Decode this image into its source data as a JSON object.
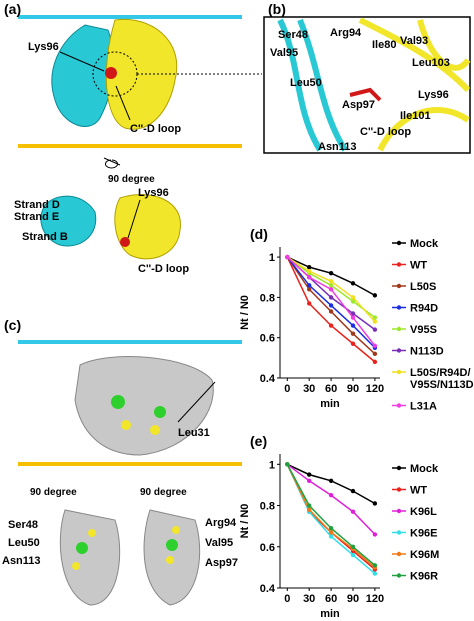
{
  "figure": {
    "a": {
      "label": "(a)",
      "lys96_top": "Lys96",
      "loop_top": "C''-D loop",
      "rotation": "90 degree",
      "lys96_bottom": "Lys96",
      "strand_d": "Strand D",
      "strand_e": "Strand E",
      "strand_b": "Strand B",
      "loop_bottom": "C''-D loop"
    },
    "b": {
      "label": "(b)",
      "ser48": "Ser48",
      "arg94": "Arg94",
      "ile80": "Ile80",
      "val93": "Val93",
      "val95": "Val95",
      "leu103": "Leu103",
      "leu50": "Leu50",
      "asp97": "Asp97",
      "lys96": "Lys96",
      "ile101": "Ile101",
      "loop": "C''-D loop",
      "asn113": "Asn113"
    },
    "c": {
      "label": "(c)",
      "leu31": "Leu31",
      "rotation_left": "90 degree",
      "rotation_right": "90 degree",
      "ser48": "Ser48",
      "leu50": "Leu50",
      "asn113": "Asn113",
      "arg94": "Arg94",
      "val95": "Val95",
      "asp97": "Asp97"
    }
  },
  "chart_data": [
    {
      "type": "line",
      "panel_label": "(d)",
      "x_label": "min",
      "y_label": "Nt / N0",
      "x": [
        0,
        30,
        60,
        90,
        120
      ],
      "xlim": [
        -10,
        127
      ],
      "xticks": [
        0,
        30,
        60,
        90,
        120
      ],
      "ylim": [
        0.4,
        1.05
      ],
      "yticks": [
        0.4,
        0.6,
        0.8,
        1
      ],
      "series": [
        {
          "name": "Mock",
          "color": "#000000",
          "values": [
            1,
            0.95,
            0.92,
            0.87,
            0.81
          ]
        },
        {
          "name": "WT",
          "color": "#e8221c",
          "values": [
            1,
            0.77,
            0.66,
            0.57,
            0.48
          ]
        },
        {
          "name": "L50S",
          "color": "#a0381c",
          "values": [
            1,
            0.84,
            0.73,
            0.62,
            0.52
          ]
        },
        {
          "name": "R94D",
          "color": "#1a2de0",
          "values": [
            1,
            0.86,
            0.76,
            0.66,
            0.55
          ]
        },
        {
          "name": "V95S",
          "color": "#9de82a",
          "values": [
            1,
            0.92,
            0.86,
            0.78,
            0.7
          ]
        },
        {
          "name": "N113D",
          "color": "#7a2fb8",
          "values": [
            1,
            0.9,
            0.8,
            0.72,
            0.64
          ]
        },
        {
          "name": "L50S/R94D/V95S/N113D",
          "color": "#f0e020",
          "values": [
            1,
            0.93,
            0.88,
            0.8,
            0.68
          ]
        },
        {
          "name": "L31A",
          "color": "#f03ce0",
          "values": [
            1,
            0.9,
            0.84,
            0.7,
            0.56
          ]
        }
      ]
    },
    {
      "type": "line",
      "panel_label": "(e)",
      "x_label": "min",
      "y_label": "Nt / N0",
      "x": [
        0,
        30,
        60,
        90,
        120
      ],
      "xlim": [
        -10,
        127
      ],
      "xticks": [
        0,
        30,
        60,
        90,
        120
      ],
      "ylim": [
        0.4,
        1.05
      ],
      "yticks": [
        0.4,
        0.6,
        0.8,
        1
      ],
      "series": [
        {
          "name": "Mock",
          "color": "#000000",
          "values": [
            1,
            0.95,
            0.92,
            0.87,
            0.81
          ]
        },
        {
          "name": "WT",
          "color": "#e8221c",
          "values": [
            1,
            0.77,
            0.67,
            0.58,
            0.49
          ]
        },
        {
          "name": "K96L",
          "color": "#e020d8",
          "values": [
            1,
            0.92,
            0.85,
            0.77,
            0.66
          ]
        },
        {
          "name": "K96E",
          "color": "#30e0e8",
          "values": [
            1,
            0.77,
            0.65,
            0.56,
            0.47
          ]
        },
        {
          "name": "K96M",
          "color": "#f07a18",
          "values": [
            1,
            0.78,
            0.67,
            0.59,
            0.5
          ]
        },
        {
          "name": "K96R",
          "color": "#20a040",
          "values": [
            1,
            0.8,
            0.69,
            0.6,
            0.51
          ]
        }
      ]
    }
  ]
}
